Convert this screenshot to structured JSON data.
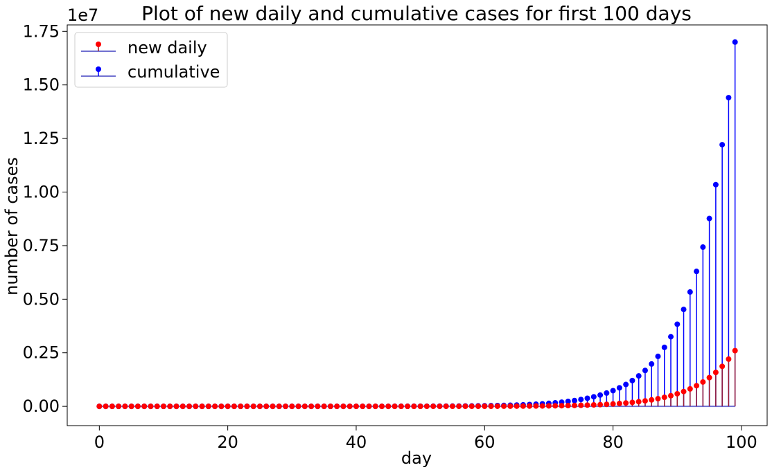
{
  "chart_data": {
    "type": "stem",
    "title": "Plot of new daily and cumulative cases for first 100 days",
    "xlabel": "day",
    "ylabel": "number of cases",
    "y_offset_label": "1e7",
    "y_scale_multiplier": 10000000,
    "xlim": [
      -5,
      104
    ],
    "ylim": [
      -0.09,
      1.78
    ],
    "x_ticks": [
      0,
      20,
      40,
      60,
      80,
      100
    ],
    "x_tick_labels": [
      "0",
      "20",
      "40",
      "60",
      "80",
      "100"
    ],
    "y_ticks": [
      0,
      0.25,
      0.5,
      0.75,
      1.0,
      1.25,
      1.5,
      1.75
    ],
    "y_tick_labels": [
      "0.00",
      "0.25",
      "0.50",
      "0.75",
      "1.00",
      "1.25",
      "1.50",
      "1.75"
    ],
    "legend": {
      "placement": "top-left",
      "entries": [
        "new daily",
        "cumulative"
      ]
    },
    "series": [
      {
        "name": "new daily",
        "marker_color": "#ff0000",
        "stem_color": "#9b1b30",
        "growth_rate": 1.18,
        "x": [
          0,
          1,
          2,
          3,
          4,
          5,
          6,
          7,
          8,
          9,
          10,
          11,
          12,
          13,
          14,
          15,
          16,
          17,
          18,
          19,
          20,
          21,
          22,
          23,
          24,
          25,
          26,
          27,
          28,
          29,
          30,
          31,
          32,
          33,
          34,
          35,
          36,
          37,
          38,
          39,
          40,
          41,
          42,
          43,
          44,
          45,
          46,
          47,
          48,
          49,
          50,
          51,
          52,
          53,
          54,
          55,
          56,
          57,
          58,
          59,
          60,
          61,
          62,
          63,
          64,
          65,
          66,
          67,
          68,
          69,
          70,
          71,
          72,
          73,
          74,
          75,
          76,
          77,
          78,
          79,
          80,
          81,
          82,
          83,
          84,
          85,
          86,
          87,
          88,
          89,
          90,
          91,
          92,
          93,
          94,
          95,
          96,
          97,
          98,
          99
        ],
        "values_end": 2600000
      },
      {
        "name": "cumulative",
        "marker_color": "#0000ff",
        "stem_color": "#0000ff",
        "x": [
          0,
          1,
          2,
          3,
          4,
          5,
          6,
          7,
          8,
          9,
          10,
          11,
          12,
          13,
          14,
          15,
          16,
          17,
          18,
          19,
          20,
          21,
          22,
          23,
          24,
          25,
          26,
          27,
          28,
          29,
          30,
          31,
          32,
          33,
          34,
          35,
          36,
          37,
          38,
          39,
          40,
          41,
          42,
          43,
          44,
          45,
          46,
          47,
          48,
          49,
          50,
          51,
          52,
          53,
          54,
          55,
          56,
          57,
          58,
          59,
          60,
          61,
          62,
          63,
          64,
          65,
          66,
          67,
          68,
          69,
          70,
          71,
          72,
          73,
          74,
          75,
          76,
          77,
          78,
          79,
          80,
          81,
          82,
          83,
          84,
          85,
          86,
          87,
          88,
          89,
          90,
          91,
          92,
          93,
          94,
          95,
          96,
          97,
          98,
          99
        ],
        "values_end": 17000000
      }
    ],
    "baseline_color": "#7070d0",
    "grid": false
  }
}
